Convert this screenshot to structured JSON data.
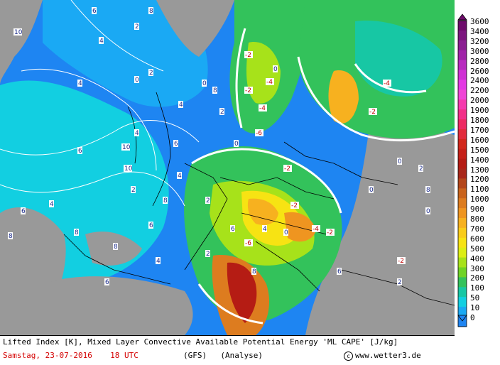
{
  "footer": {
    "title": "Lifted Index [K], Mixed Layer Convective Available Potential Energy 'ML CAPE' [J/kg]",
    "date": "Samstag, 23-07-2016",
    "time": "18 UTC",
    "model": "(GFS)",
    "run_type": "(Analyse)",
    "credit": "www.wetter3.de"
  },
  "legend": {
    "icon_up": "triangle-up-icon",
    "icon_down": "triangle-down-icon",
    "entries": [
      {
        "label": "3600",
        "color": "#6e0c6b"
      },
      {
        "label": "3400",
        "color": "#7c167e"
      },
      {
        "label": "3200",
        "color": "#8a1e91"
      },
      {
        "label": "3000",
        "color": "#a024a8"
      },
      {
        "label": "2800",
        "color": "#b82bbf"
      },
      {
        "label": "2600",
        "color": "#cf31d4"
      },
      {
        "label": "2400",
        "color": "#e339e3"
      },
      {
        "label": "2200",
        "color": "#ef45d6"
      },
      {
        "label": "2000",
        "color": "#f53aae"
      },
      {
        "label": "1900",
        "color": "#f22f88"
      },
      {
        "label": "1800",
        "color": "#ed2a63"
      },
      {
        "label": "1700",
        "color": "#e22b3c"
      },
      {
        "label": "1600",
        "color": "#d2271c"
      },
      {
        "label": "1500",
        "color": "#c52018"
      },
      {
        "label": "1400",
        "color": "#b51c14"
      },
      {
        "label": "1300",
        "color": "#a9271a"
      },
      {
        "label": "1200",
        "color": "#b4461a"
      },
      {
        "label": "1100",
        "color": "#c9631c"
      },
      {
        "label": "1000",
        "color": "#dd7c1f"
      },
      {
        "label": "900",
        "color": "#ef9520"
      },
      {
        "label": "800",
        "color": "#f7b11f"
      },
      {
        "label": "700",
        "color": "#f9cc19"
      },
      {
        "label": "600",
        "color": "#f7e313"
      },
      {
        "label": "500",
        "color": "#dcee14"
      },
      {
        "label": "400",
        "color": "#a7e21a"
      },
      {
        "label": "300",
        "color": "#6fd325"
      },
      {
        "label": "200",
        "color": "#33c25b"
      },
      {
        "label": "100",
        "color": "#17c7a4"
      },
      {
        "label": "50",
        "color": "#12cfe1"
      },
      {
        "label": "10",
        "color": "#1aa9f4"
      },
      {
        "label": "0",
        "color": "#1e85f2"
      }
    ]
  },
  "map": {
    "land_color": "#999999",
    "ocean_low_color": "#1e85f2",
    "li_labels": [
      "10",
      "6",
      "8",
      "2",
      "4",
      "0",
      "-2",
      "-4",
      "-6",
      "8",
      "6",
      "4",
      "2",
      "0",
      "-2",
      "-4",
      "10",
      "6",
      "8",
      "4",
      "2",
      "0",
      "-2",
      "6",
      "8",
      "4",
      "2",
      "0",
      "-2",
      "10",
      "6",
      "8",
      "4",
      "2",
      "0",
      "-2",
      "-4",
      "6",
      "8",
      "4",
      "2",
      "0",
      "-2",
      "-4",
      "-6",
      "8",
      "6",
      "4",
      "2",
      "0",
      "-2",
      "4",
      "6",
      "8",
      "2",
      "0"
    ]
  }
}
